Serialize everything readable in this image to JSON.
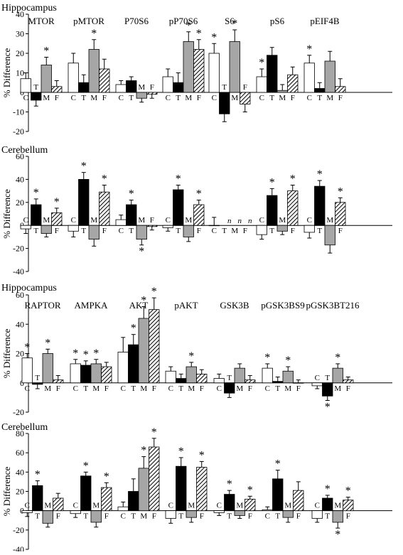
{
  "series": [
    {
      "code": "C",
      "fill": "#ffffff"
    },
    {
      "code": "T",
      "fill": "#000000"
    },
    {
      "code": "M",
      "fill": "#a6a6a6"
    },
    {
      "code": "F",
      "fill": "hatch"
    }
  ],
  "chart_data": [
    {
      "type": "bar",
      "title": "Hippocampus",
      "ylabel": "% Difference",
      "ylim": [
        -20,
        40
      ],
      "yticks": [
        -20,
        -10,
        0,
        10,
        20,
        30,
        40
      ],
      "categories": [
        "MTOR",
        "pMTOR",
        "P70S6",
        "pP70S6",
        "S6",
        "pS6",
        "pEIF4B"
      ],
      "values": [
        [
          7,
          -4,
          14,
          3
        ],
        [
          15,
          5,
          22,
          12
        ],
        [
          4,
          6,
          -3,
          -1
        ],
        [
          8,
          5,
          26,
          22
        ],
        [
          20,
          -11,
          26,
          -6
        ],
        [
          8,
          19,
          1,
          9
        ],
        [
          15,
          2,
          16,
          3
        ]
      ],
      "errors": [
        [
          3,
          3,
          4,
          3
        ],
        [
          5,
          4,
          5,
          5
        ],
        [
          2,
          2,
          2,
          2
        ],
        [
          4,
          5,
          5,
          5
        ],
        [
          5,
          4,
          6,
          4
        ],
        [
          4,
          4,
          3,
          4
        ],
        [
          4,
          3,
          5,
          4
        ]
      ],
      "stars": [
        [
          false,
          false,
          true,
          false
        ],
        [
          false,
          false,
          true,
          false
        ],
        [
          false,
          false,
          false,
          false
        ],
        [
          false,
          false,
          true,
          true
        ],
        [
          true,
          false,
          true,
          false
        ],
        [
          true,
          false,
          false,
          false
        ],
        [
          true,
          false,
          false,
          false
        ]
      ]
    },
    {
      "type": "bar",
      "title": "Cerebellum",
      "ylabel": "% Difference",
      "ylim": [
        -40,
        60
      ],
      "yticks": [
        -40,
        -20,
        0,
        20,
        40,
        60
      ],
      "categories": [
        "MTOR",
        "pMTOR",
        "P70S6",
        "pP70S6",
        "S6",
        "pS6",
        "pEIF4B"
      ],
      "values": [
        [
          -3,
          18,
          -7,
          11
        ],
        [
          -5,
          40,
          -12,
          29
        ],
        [
          5,
          18,
          -12,
          -1
        ],
        [
          -2,
          31,
          -10,
          18
        ],
        [
          0,
          0,
          0,
          0
        ],
        [
          -8,
          26,
          -5,
          30
        ],
        [
          -6,
          34,
          -17,
          20
        ]
      ],
      "errors": [
        [
          4,
          5,
          3,
          4
        ],
        [
          5,
          6,
          6,
          6
        ],
        [
          4,
          4,
          5,
          3
        ],
        [
          3,
          4,
          4,
          4
        ],
        [
          7,
          0,
          0,
          0
        ],
        [
          4,
          6,
          3,
          5
        ],
        [
          5,
          5,
          7,
          4
        ]
      ],
      "stars": [
        [
          false,
          true,
          false,
          true
        ],
        [
          false,
          true,
          false,
          true
        ],
        [
          false,
          true,
          true,
          false
        ],
        [
          false,
          true,
          false,
          true
        ],
        [
          false,
          false,
          false,
          false
        ],
        [
          false,
          true,
          false,
          true
        ],
        [
          false,
          true,
          false,
          true
        ]
      ],
      "na_marks": [
        "n",
        "n",
        "n"
      ]
    },
    {
      "type": "bar",
      "title": "Hippocampus",
      "ylabel": "% Difference",
      "ylim": [
        -20,
        60
      ],
      "yticks": [
        -20,
        0,
        20,
        40,
        60
      ],
      "categories": [
        "RAPTOR",
        "AMPKA",
        "AKT",
        "pAKT",
        "GSK3B",
        "pGSK3BS9",
        "pGSK3BT216"
      ],
      "values": [
        [
          17,
          -1,
          20,
          2
        ],
        [
          13,
          12,
          13,
          11
        ],
        [
          21,
          26,
          44,
          50
        ],
        [
          8,
          3,
          11,
          6
        ],
        [
          3,
          -7,
          10,
          2
        ],
        [
          10,
          1,
          8,
          0
        ],
        [
          -2,
          -9,
          10,
          2
        ]
      ],
      "errors": [
        [
          3,
          3,
          3,
          3
        ],
        [
          3,
          3,
          3,
          3
        ],
        [
          10,
          7,
          8,
          8
        ],
        [
          3,
          3,
          3,
          3
        ],
        [
          3,
          3,
          3,
          3
        ],
        [
          3,
          3,
          3,
          2
        ],
        [
          2,
          3,
          3,
          2
        ]
      ],
      "stars": [
        [
          true,
          false,
          true,
          false
        ],
        [
          true,
          true,
          true,
          false
        ],
        [
          false,
          true,
          true,
          true
        ],
        [
          false,
          false,
          true,
          false
        ],
        [
          false,
          false,
          false,
          false
        ],
        [
          true,
          false,
          true,
          false
        ],
        [
          false,
          true,
          true,
          false
        ]
      ]
    },
    {
      "type": "bar",
      "title": "Cerebellum",
      "ylabel": "% Difference",
      "ylim": [
        -40,
        80
      ],
      "yticks": [
        -40,
        -20,
        0,
        20,
        40,
        60,
        80
      ],
      "categories": [
        "RAPTOR",
        "AMPKA",
        "AKT",
        "pAKT",
        "GSK3B",
        "pGSK3BS9",
        "pGSK3BT216"
      ],
      "values": [
        [
          -2,
          26,
          -13,
          13
        ],
        [
          -3,
          36,
          -12,
          24
        ],
        [
          4,
          20,
          44,
          66
        ],
        [
          -8,
          46,
          -7,
          45
        ],
        [
          -2,
          17,
          -5,
          12
        ],
        [
          1,
          33,
          -7,
          21
        ],
        [
          -8,
          13,
          -12,
          11
        ]
      ],
      "errors": [
        [
          4,
          5,
          4,
          5
        ],
        [
          4,
          4,
          5,
          5
        ],
        [
          5,
          13,
          12,
          9
        ],
        [
          5,
          9,
          5,
          6
        ],
        [
          3,
          4,
          3,
          3
        ],
        [
          3,
          9,
          5,
          9
        ],
        [
          4,
          3,
          6,
          3
        ]
      ],
      "stars": [
        [
          false,
          true,
          false,
          false
        ],
        [
          false,
          true,
          false,
          true
        ],
        [
          false,
          false,
          true,
          true
        ],
        [
          false,
          true,
          false,
          true
        ],
        [
          false,
          true,
          false,
          true
        ],
        [
          false,
          true,
          false,
          false
        ],
        [
          false,
          true,
          true,
          true
        ]
      ]
    }
  ]
}
